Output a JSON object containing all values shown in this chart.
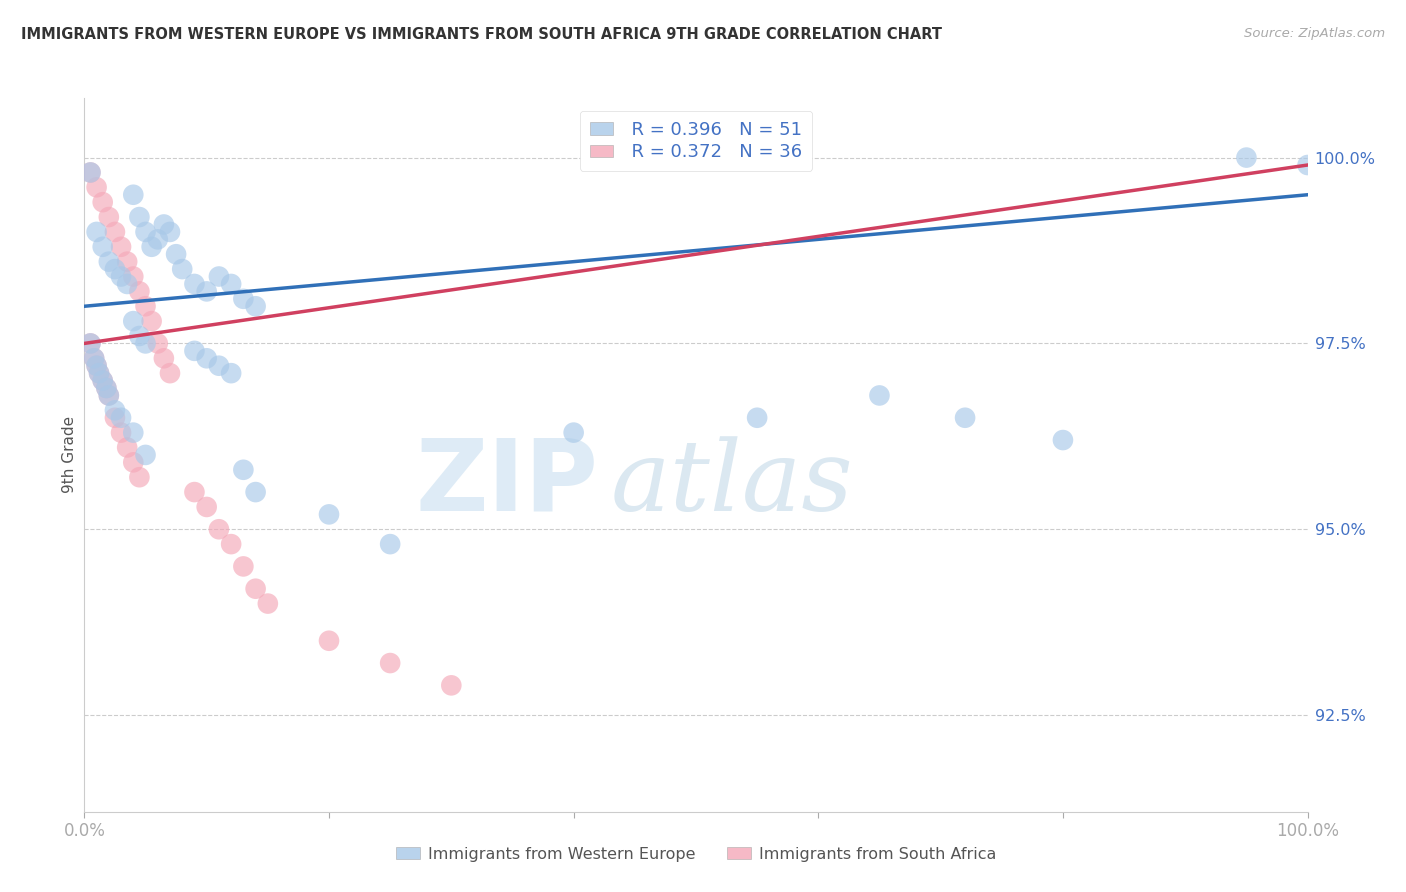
{
  "title": "IMMIGRANTS FROM WESTERN EUROPE VS IMMIGRANTS FROM SOUTH AFRICA 9TH GRADE CORRELATION CHART",
  "source": "Source: ZipAtlas.com",
  "ylabel": "9th Grade",
  "legend_blue_r": "R = 0.396",
  "legend_blue_n": "N = 51",
  "legend_pink_r": "R = 0.372",
  "legend_pink_n": "N = 36",
  "legend_label_blue": "Immigrants from Western Europe",
  "legend_label_pink": "Immigrants from South Africa",
  "blue_scatter_color": "#a8c8e8",
  "pink_scatter_color": "#f4a8b8",
  "blue_line_color": "#3070b8",
  "pink_line_color": "#d04060",
  "right_axis_color": "#4472c4",
  "grid_color": "#cccccc",
  "title_color": "#333333",
  "background_color": "#ffffff",
  "right_yticks": [
    92.5,
    95.0,
    97.5,
    100.0
  ],
  "right_ytick_labels": [
    "92.5%",
    "95.0%",
    "97.5%",
    "100.0%"
  ],
  "xmin": 0.0,
  "xmax": 1.0,
  "ymin": 91.2,
  "ymax": 100.8,
  "blue_scatter_x": [
    0.005,
    0.04,
    0.045,
    0.05,
    0.055,
    0.06,
    0.065,
    0.07,
    0.075,
    0.08,
    0.09,
    0.1,
    0.11,
    0.12,
    0.13,
    0.14,
    0.01,
    0.015,
    0.02,
    0.025,
    0.03,
    0.035,
    0.04,
    0.045,
    0.05,
    0.09,
    0.1,
    0.11,
    0.12,
    0.005,
    0.008,
    0.01,
    0.012,
    0.015,
    0.018,
    0.02,
    0.025,
    0.03,
    0.04,
    0.05,
    0.13,
    0.14,
    0.2,
    0.25,
    0.4,
    0.55,
    0.65,
    0.72,
    0.8,
    0.95,
    1.0
  ],
  "blue_scatter_y": [
    99.8,
    99.5,
    99.2,
    99.0,
    98.8,
    98.9,
    99.1,
    99.0,
    98.7,
    98.5,
    98.3,
    98.2,
    98.4,
    98.3,
    98.1,
    98.0,
    99.0,
    98.8,
    98.6,
    98.5,
    98.4,
    98.3,
    97.8,
    97.6,
    97.5,
    97.4,
    97.3,
    97.2,
    97.1,
    97.5,
    97.3,
    97.2,
    97.1,
    97.0,
    96.9,
    96.8,
    96.6,
    96.5,
    96.3,
    96.0,
    95.8,
    95.5,
    95.2,
    94.8,
    96.3,
    96.5,
    96.8,
    96.5,
    96.2,
    100.0,
    99.9
  ],
  "pink_scatter_x": [
    0.005,
    0.01,
    0.015,
    0.02,
    0.025,
    0.03,
    0.035,
    0.04,
    0.045,
    0.05,
    0.055,
    0.06,
    0.065,
    0.07,
    0.005,
    0.008,
    0.01,
    0.012,
    0.015,
    0.018,
    0.02,
    0.025,
    0.03,
    0.035,
    0.04,
    0.045,
    0.09,
    0.1,
    0.11,
    0.12,
    0.13,
    0.14,
    0.15,
    0.2,
    0.25,
    0.3
  ],
  "pink_scatter_y": [
    99.8,
    99.6,
    99.4,
    99.2,
    99.0,
    98.8,
    98.6,
    98.4,
    98.2,
    98.0,
    97.8,
    97.5,
    97.3,
    97.1,
    97.5,
    97.3,
    97.2,
    97.1,
    97.0,
    96.9,
    96.8,
    96.5,
    96.3,
    96.1,
    95.9,
    95.7,
    95.5,
    95.3,
    95.0,
    94.8,
    94.5,
    94.2,
    94.0,
    93.5,
    93.2,
    92.9
  ],
  "blue_trend_x": [
    0.0,
    1.0
  ],
  "blue_trend_y": [
    98.0,
    99.5
  ],
  "pink_trend_x": [
    0.0,
    1.0
  ],
  "pink_trend_y": [
    97.5,
    99.9
  ]
}
